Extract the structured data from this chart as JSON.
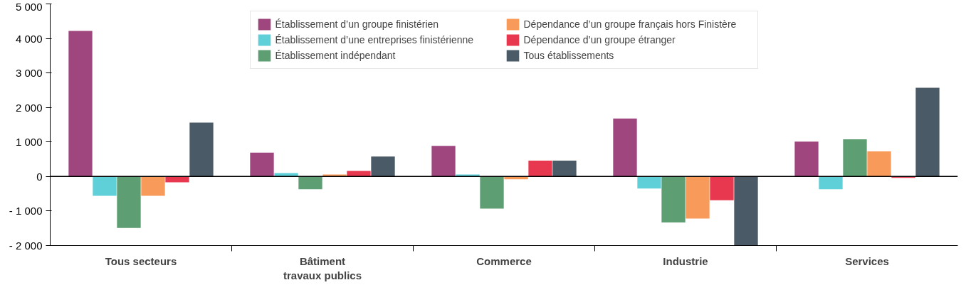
{
  "chart_data": {
    "type": "bar",
    "categories": [
      "Tous secteurs",
      "Bâtiment\ntravaux publics",
      "Commerce",
      "Industrie",
      "Services"
    ],
    "series": [
      {
        "name": "Établissement d’un groupe finistérien",
        "color": "#a0467f",
        "values": [
          4220,
          690,
          890,
          1680,
          1010
        ]
      },
      {
        "name": "Établissement d’une entreprises finistérienne",
        "color": "#5fcfd8",
        "values": [
          -560,
          100,
          60,
          -350,
          -370
        ]
      },
      {
        "name": "Établissement indépendant",
        "color": "#5e9e73",
        "values": [
          -1490,
          -370,
          -930,
          -1330,
          1080
        ]
      },
      {
        "name": "Dépendance d’un groupe français hors Finistère",
        "color": "#f79a5a",
        "values": [
          -560,
          60,
          -80,
          -1220,
          730
        ]
      },
      {
        "name": "Dépendance d’un groupe étranger",
        "color": "#e8384f",
        "values": [
          -170,
          160,
          460,
          -690,
          -40
        ]
      },
      {
        "name": "Tous établissements",
        "color": "#4a5a66",
        "values": [
          1560,
          580,
          460,
          -2000,
          2570
        ]
      }
    ],
    "ylim": [
      -2000,
      5000
    ],
    "yticks": [
      {
        "value": -2000,
        "label": "- 2 000"
      },
      {
        "value": -1000,
        "label": "- 1 000"
      },
      0,
      {
        "value": 1000,
        "label": "1 000"
      },
      {
        "value": 2000,
        "label": "2 000"
      },
      {
        "value": 3000,
        "label": "3 000"
      },
      {
        "value": 4000,
        "label": "4 000"
      },
      {
        "value": 5000,
        "label": "5 000"
      }
    ],
    "ref_lines": [
      {
        "axis": "y",
        "value": 0,
        "color": "#000000"
      }
    ],
    "grid": false,
    "legend": "top"
  }
}
